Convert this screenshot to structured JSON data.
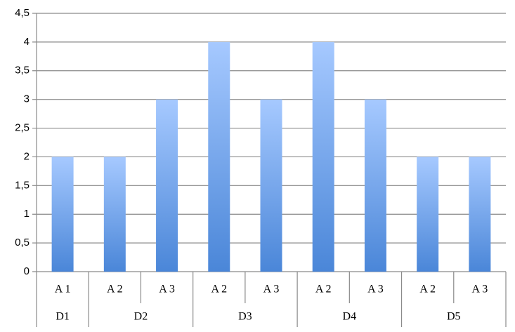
{
  "chart_data": {
    "type": "bar",
    "groups": [
      {
        "name": "D1",
        "categories": [
          "A 1"
        ],
        "values": [
          2
        ]
      },
      {
        "name": "D2",
        "categories": [
          "A 2",
          "A 3"
        ],
        "values": [
          2,
          3
        ]
      },
      {
        "name": "D3",
        "categories": [
          "A 2",
          "A 3"
        ],
        "values": [
          4,
          3
        ]
      },
      {
        "name": "D4",
        "categories": [
          "A 2",
          "A 3"
        ],
        "values": [
          4,
          3
        ]
      },
      {
        "name": "D5",
        "categories": [
          "A 2",
          "A 3"
        ],
        "values": [
          2,
          2
        ]
      }
    ],
    "color": "#4a86d8",
    "ylim": [
      0,
      4.5
    ],
    "yticks": [
      0,
      {
        "value": 0.5,
        "label": "0,5"
      },
      1,
      {
        "value": 1.5,
        "label": "1,5"
      },
      2,
      {
        "value": 2.5,
        "label": "2,5"
      },
      3,
      {
        "value": 3.5,
        "label": "3,5"
      },
      4,
      {
        "value": 4.5,
        "label": "4,5"
      }
    ],
    "grid": true
  }
}
